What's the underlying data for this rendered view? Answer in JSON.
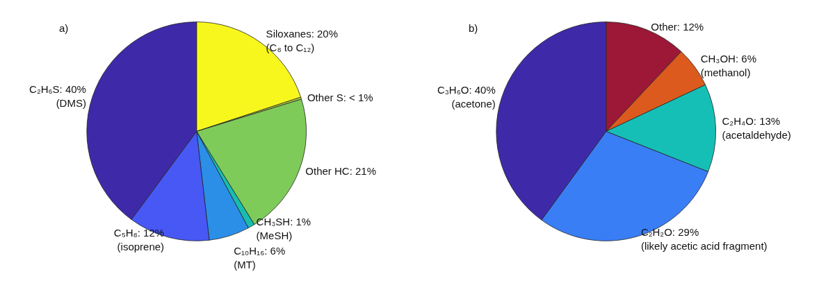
{
  "chart_data": [
    {
      "type": "pie",
      "title": "a)",
      "categories": [
        "Siloxanes",
        "Other S",
        "Other HC",
        "CH₃SH",
        "C₁₀H₁₆",
        "C₅H₈",
        "C₂H₆S"
      ],
      "values": [
        20,
        0.3,
        21,
        1,
        6,
        12,
        40
      ],
      "value_labels": [
        "20%",
        "< 1%",
        "21%",
        "1%",
        "6%",
        "12%",
        "40%"
      ],
      "colors": [
        "#f7f71e",
        "#b4d23c",
        "#7ecb5a",
        "#18bdb0",
        "#2b8fe8",
        "#4758f5",
        "#3e2aa8"
      ],
      "annotations": [
        {
          "text": "(C₈ to C₁₂)",
          "x": "Siloxanes"
        },
        {
          "text": "(MeSH)",
          "x": "CH₃SH"
        },
        {
          "text": "(MT)",
          "x": "C₁₀H₁₆"
        },
        {
          "text": "(isoprene)",
          "x": "C₅H₈"
        },
        {
          "text": "(DMS)",
          "x": "C₂H₆S"
        }
      ]
    },
    {
      "type": "pie",
      "title": "b)",
      "categories": [
        "Other",
        "CH₃OH",
        "C₂H₄O",
        "C₂H₂O",
        "C₃H₆O"
      ],
      "values": [
        12,
        6,
        13,
        29,
        40
      ],
      "value_labels": [
        "12%",
        "6%",
        "13%",
        "29%",
        "40%"
      ],
      "colors": [
        "#9c1836",
        "#dc5a1e",
        "#16bfb6",
        "#3a7ef6",
        "#3e2aa8"
      ],
      "annotations": [
        {
          "text": "(methanol)",
          "x": "CH₃OH"
        },
        {
          "text": "(acetaldehyde)",
          "x": "C₂H₄O"
        },
        {
          "text": "(likely acetic acid fragment)",
          "x": "C₂H₂O"
        },
        {
          "text": "(acetone)",
          "x": "C₃H₆O"
        }
      ]
    }
  ]
}
